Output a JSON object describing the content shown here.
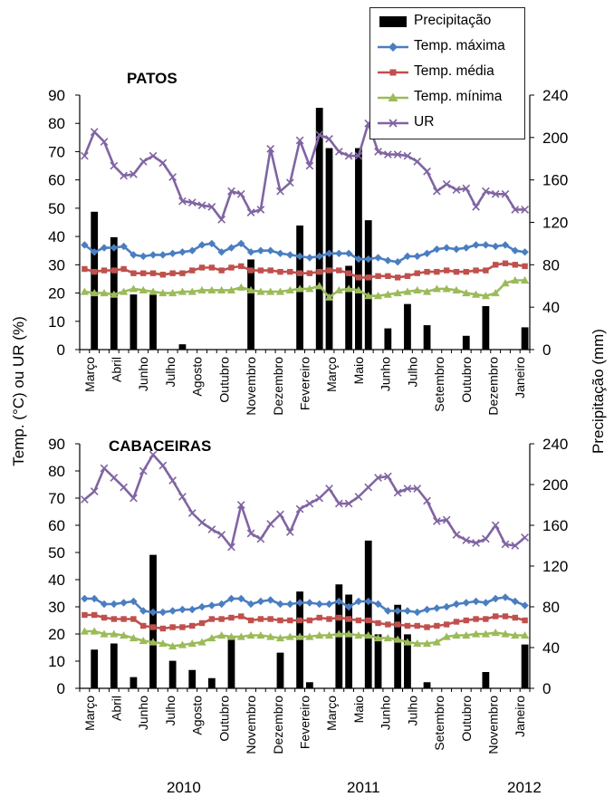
{
  "colors": {
    "precip": "#000000",
    "tmax": "#4a7ec0",
    "tmed": "#c0504d",
    "tmin": "#9bbb59",
    "ur": "#8064a2"
  },
  "axes": {
    "left_label": "Temp. (°C) ou UR (%)",
    "right_label": "Precipitação (mm)"
  },
  "years": [
    "2010",
    "2011",
    "2012"
  ],
  "chart_data": [
    {
      "type": "bar+line",
      "title": "PATOS",
      "xlabel": "",
      "ylabel": "Temp. (°C) ou UR (%)",
      "y2label": "Precipitação (mm)",
      "ylim": [
        0,
        90
      ],
      "y2lim": [
        0,
        240
      ],
      "yticks": [
        0,
        10,
        20,
        30,
        40,
        50,
        60,
        70,
        80,
        90
      ],
      "y2ticks": [
        0,
        40,
        80,
        120,
        160,
        200,
        240
      ],
      "x_tick_labels": [
        "Março",
        "Abril",
        "Junho",
        "Julho",
        "Agosto",
        "Outubro",
        "Novembro",
        "Dezembro",
        "Fevereiro",
        "Março",
        "Maio",
        "Junho",
        "Julho",
        "Setembro",
        "Outubro",
        "Dezembro",
        "Janeiro"
      ],
      "legend": [
        "Precipitação",
        "Temp. máxima",
        "Temp. média",
        "Temp. mínima",
        "UR"
      ],
      "legend_position": "top-right",
      "precipitation": [
        0,
        130,
        0,
        106,
        0,
        52,
        0,
        52,
        0,
        0,
        5,
        0,
        0,
        0,
        0,
        0,
        0,
        85,
        0,
        0,
        0,
        0,
        117,
        0,
        228,
        190,
        0,
        79,
        190,
        122,
        0,
        20,
        0,
        43,
        0,
        23,
        0,
        0,
        0,
        13,
        0,
        41,
        0,
        0,
        0,
        21
      ],
      "series": [
        {
          "name": "Temp. máxima",
          "values": [
            37,
            34.5,
            36,
            36,
            36.5,
            33.5,
            33,
            33.5,
            33.5,
            34,
            34.5,
            35,
            37,
            37.5,
            34.5,
            36,
            37.5,
            34.5,
            35,
            35,
            34,
            33.5,
            33,
            32.5,
            33,
            34,
            34,
            34,
            32,
            32,
            32.5,
            31.5,
            31,
            33,
            33,
            34,
            35.5,
            36,
            35.5,
            36,
            37,
            37,
            36.5,
            37,
            35,
            34.5
          ]
        },
        {
          "name": "Temp. média",
          "values": [
            28.5,
            27.5,
            28,
            28,
            28.5,
            27,
            27,
            27,
            26.5,
            27,
            27,
            28,
            29,
            29,
            28,
            29,
            29.5,
            28,
            28,
            28,
            27.5,
            27.5,
            27,
            27,
            27.5,
            28,
            28,
            27,
            25.5,
            25.5,
            26,
            26,
            25.5,
            26,
            27,
            27.5,
            27.5,
            28,
            27.5,
            27.5,
            28,
            28,
            30,
            30.5,
            30,
            29.5
          ]
        },
        {
          "name": "Temp. mínima",
          "values": [
            20.5,
            20,
            20,
            19.5,
            20.5,
            21.5,
            21,
            20.5,
            20,
            20,
            20.5,
            20.5,
            21,
            21,
            21,
            21,
            22,
            21,
            20.5,
            20.5,
            20.5,
            21,
            21.5,
            21.5,
            22.5,
            18.5,
            21,
            21.5,
            21,
            19,
            19,
            19.5,
            20,
            20.5,
            21,
            20.5,
            21.5,
            21.5,
            21,
            20,
            19.5,
            19,
            20,
            23.5,
            24.5,
            24.5
          ]
        },
        {
          "name": "UR",
          "values": [
            68.5,
            77,
            73.5,
            65,
            61.5,
            62,
            66.5,
            68.5,
            66,
            61,
            52.5,
            52,
            51,
            50.5,
            46,
            56,
            55,
            48.5,
            49.5,
            71,
            56,
            59,
            74,
            65,
            76,
            74.5,
            70,
            68.5,
            68.5,
            80,
            70,
            69,
            69,
            68.5,
            66.5,
            63,
            56,
            58.5,
            56.5,
            57,
            50.5,
            56,
            55,
            55,
            49.5,
            49.5
          ]
        }
      ]
    },
    {
      "type": "bar+line",
      "title": "CABACEIRAS",
      "xlabel": "",
      "ylabel": "Temp. (°C) ou UR (%)",
      "y2label": "Precipitação (mm)",
      "ylim": [
        0,
        90
      ],
      "y2lim": [
        0,
        240
      ],
      "yticks": [
        0,
        10,
        20,
        30,
        40,
        50,
        60,
        70,
        80,
        90
      ],
      "y2ticks": [
        0,
        40,
        80,
        120,
        160,
        200,
        240
      ],
      "x_tick_labels": [
        "Março",
        "Abril",
        "Junho",
        "Julho",
        "Agosto",
        "Outubro",
        "Novembro",
        "Dezembro",
        "Fevereiro",
        "Março",
        "Maio",
        "Junho",
        "Julho",
        "Setembro",
        "Outubro",
        "Novembro",
        "Janeiro"
      ],
      "precipitation": [
        0,
        38,
        0,
        44,
        0,
        11,
        0,
        131,
        0,
        27,
        0,
        18,
        0,
        10,
        0,
        51,
        0,
        0,
        0,
        0,
        35,
        0,
        95,
        6,
        0,
        0,
        102,
        92,
        0,
        145,
        53,
        0,
        82,
        53,
        0,
        6,
        0,
        0,
        0,
        0,
        0,
        16,
        0,
        0,
        0,
        43
      ],
      "series": [
        {
          "name": "Temp. máxima",
          "values": [
            33,
            33,
            31,
            31,
            31.5,
            32,
            28.5,
            28,
            28,
            28.5,
            29,
            29,
            30,
            30.5,
            31,
            33,
            33,
            31,
            32,
            32.5,
            31,
            31,
            31.5,
            31.5,
            31,
            31,
            32,
            30,
            32,
            32,
            31,
            28.5,
            28.5,
            28.5,
            28,
            29,
            29.5,
            30,
            31,
            31.5,
            32,
            31.5,
            33,
            33.5,
            32,
            30.5
          ]
        },
        {
          "name": "Temp. média",
          "values": [
            27,
            27,
            26,
            25.5,
            25.5,
            25.5,
            23,
            22.5,
            22,
            22.5,
            22.5,
            23,
            24,
            25.5,
            25.5,
            26,
            26.5,
            25,
            25.5,
            25.5,
            25,
            25,
            25,
            25,
            26,
            25.5,
            26,
            25.5,
            25,
            25,
            24,
            23.5,
            23.5,
            23,
            23,
            22.5,
            23,
            23.5,
            24.5,
            25,
            25.5,
            25.5,
            26.5,
            26.5,
            26,
            25
          ]
        },
        {
          "name": "Temp. mínima",
          "values": [
            21,
            21,
            20,
            20,
            19.5,
            18.5,
            17.5,
            17,
            16.5,
            15.5,
            16,
            16.5,
            17,
            18.5,
            19.5,
            19,
            19,
            19.5,
            19.5,
            19,
            18.5,
            19,
            19,
            19,
            19.5,
            19.5,
            20,
            20,
            19.5,
            19.5,
            18.5,
            18.5,
            18,
            17,
            16.5,
            16.5,
            17,
            19,
            19.5,
            19.5,
            20,
            20,
            20.5,
            20,
            19.5,
            19.5
          ]
        },
        {
          "name": "UR",
          "values": [
            69.5,
            72.5,
            81,
            77.5,
            74,
            70,
            80,
            86,
            82,
            76.5,
            70.5,
            64.5,
            61,
            58.5,
            56.5,
            52,
            67.5,
            57,
            55,
            60.5,
            64,
            57.5,
            66,
            68,
            70,
            73.5,
            68,
            68,
            70.5,
            74,
            77.5,
            78,
            72,
            73.5,
            73.5,
            69,
            61.5,
            62,
            56.5,
            54.5,
            53.5,
            55,
            60,
            53,
            52.5,
            55.5
          ]
        }
      ]
    }
  ]
}
